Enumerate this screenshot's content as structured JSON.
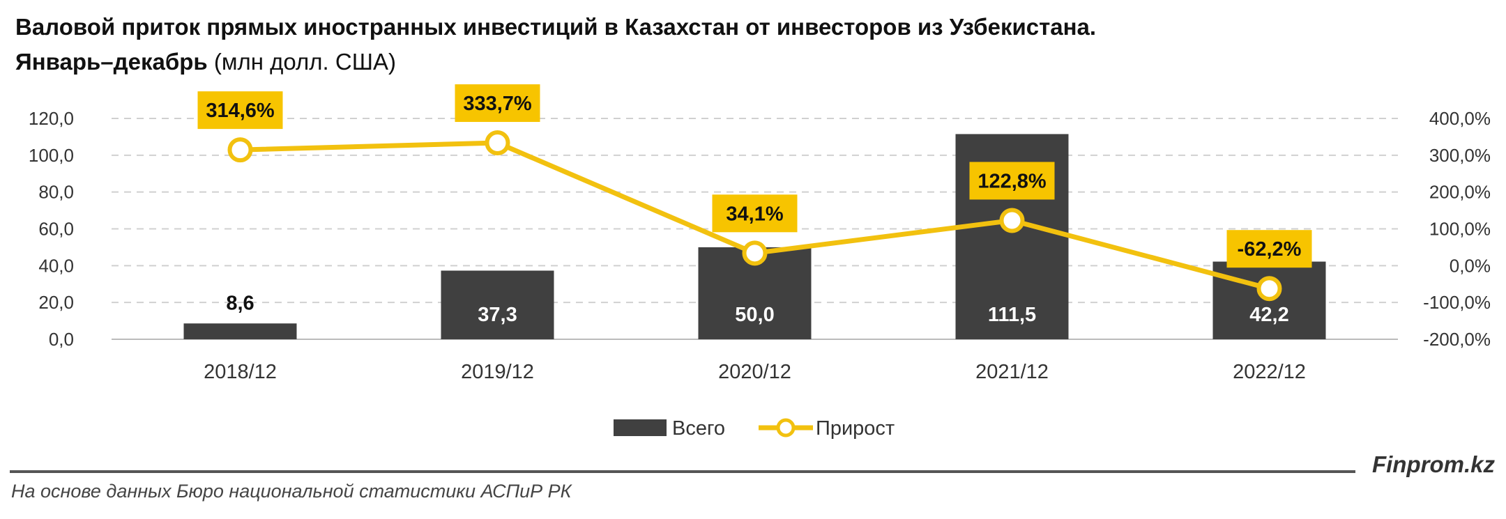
{
  "title_bold": "Валовой приток прямых иностранных инвестиций в Казахстан от инвесторов из Узбекистана.",
  "title_line2_bold": "Январь–декабрь",
  "title_unit": "(млн долл. США)",
  "brand": "Finprom.kz",
  "source": "На основе данных Бюро национальной статистики АСПиР РК",
  "colors": {
    "bar": "#404040",
    "line": "#f2c10f",
    "label_bg": "#f7c400",
    "grid": "#d0d0d0"
  },
  "chart_data": {
    "type": "bar",
    "categories": [
      "2018/12",
      "2019/12",
      "2020/12",
      "2021/12",
      "2022/12"
    ],
    "series": [
      {
        "name": "Всего",
        "type": "bar",
        "axis": "left",
        "values": [
          8.6,
          37.3,
          50.0,
          111.5,
          42.2
        ],
        "labels": [
          "8,6",
          "37,3",
          "50,0",
          "111,5",
          "42,2"
        ]
      },
      {
        "name": "Прирост",
        "type": "line",
        "axis": "right",
        "values": [
          314.6,
          333.7,
          34.1,
          122.8,
          -62.2
        ],
        "labels": [
          "314,6%",
          "333,7%",
          "34,1%",
          "122,8%",
          "-62,2%"
        ]
      }
    ],
    "y_left": {
      "min": 0,
      "max": 120,
      "ticks": [
        "0,0",
        "20,0",
        "40,0",
        "60,0",
        "80,0",
        "100,0",
        "120,0"
      ]
    },
    "y_right": {
      "min": -200,
      "max": 400,
      "ticks": [
        "-200,0%",
        "-100,0%",
        "0,0%",
        "100,0%",
        "200,0%",
        "300,0%",
        "400,0%"
      ]
    },
    "grid": true,
    "legend_position": "bottom"
  }
}
